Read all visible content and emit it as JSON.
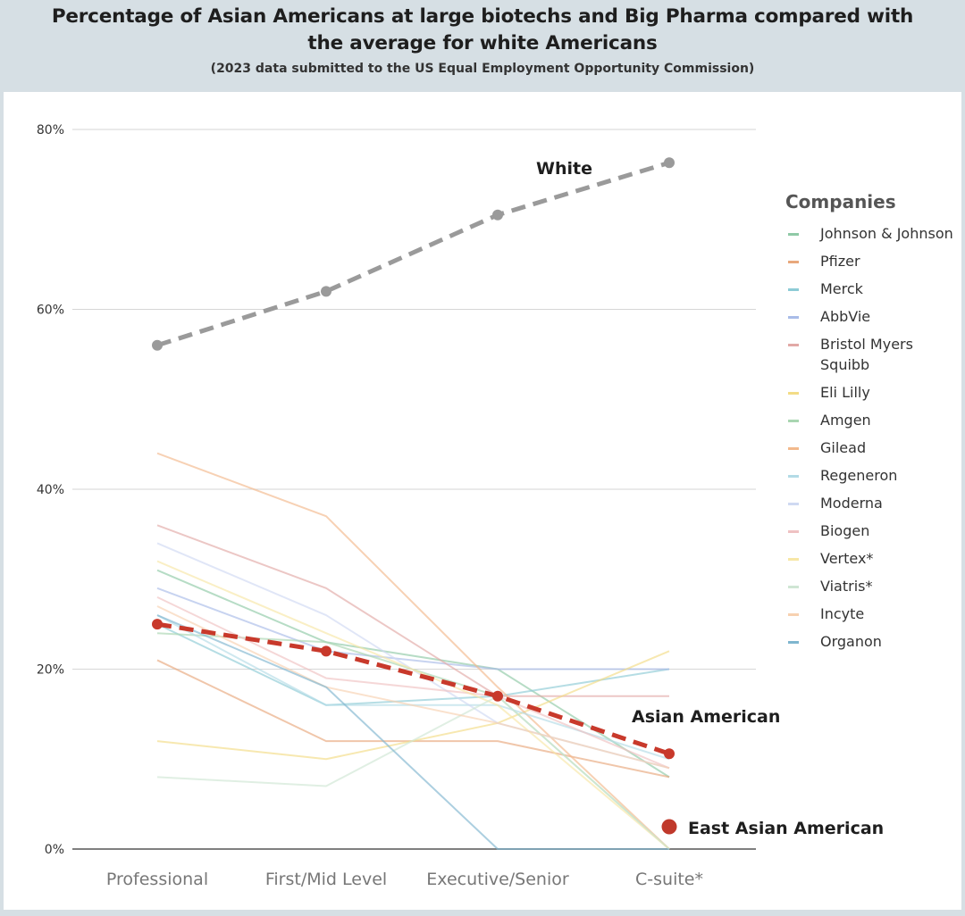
{
  "header": {
    "title": "Percentage of Asian Americans at large biotechs and Big Pharma compared with the average for white Americans",
    "subtitle": "(2023 data submitted to the US Equal Employment Opportunity Commission)"
  },
  "chart_data": {
    "type": "line",
    "categories": [
      "Professional",
      "First/Mid Level",
      "Executive/Senior",
      "C-suite*"
    ],
    "yticks": [
      "0%",
      "20%",
      "40%",
      "60%",
      "80%"
    ],
    "ylim": [
      0,
      80
    ],
    "grid": true,
    "legend_title": "Companies",
    "legend_position": "right",
    "series": [
      {
        "name": "White",
        "values": [
          56,
          62,
          70.5,
          76.3
        ],
        "color": "#9a9a9a",
        "style": "dashed"
      },
      {
        "name": "Asian American",
        "values": [
          25,
          22,
          17,
          10.6
        ],
        "color": "#c8392b",
        "style": "dashed"
      }
    ],
    "east_asian_label": "East Asian American",
    "east_asian_color": "#c0392b",
    "companies": [
      {
        "name": "Johnson & Johnson",
        "color": "#8fc9a6",
        "values": [
          31,
          23,
          20,
          8
        ]
      },
      {
        "name": "Pfizer",
        "color": "#e8a87c",
        "values": [
          21,
          12,
          12,
          8
        ]
      },
      {
        "name": "Merck",
        "color": "#8dcbd6",
        "values": [
          25,
          16,
          17,
          20
        ]
      },
      {
        "name": "AbbVie",
        "color": "#a9bce8",
        "values": [
          29,
          22,
          20,
          20
        ]
      },
      {
        "name": "Bristol Myers Squibb",
        "color": "#e2a9a6",
        "values": [
          36,
          29,
          17,
          17
        ]
      },
      {
        "name": "Eli Lilly",
        "color": "#f3dc86",
        "values": [
          12,
          10,
          14,
          22
        ]
      },
      {
        "name": "Amgen",
        "color": "#a9d6b1",
        "values": [
          24,
          23,
          17,
          0
        ]
      },
      {
        "name": "Gilead",
        "color": "#f2b98c",
        "values": [
          44,
          37,
          18,
          0
        ]
      },
      {
        "name": "Regeneron",
        "color": "#b3dbe6",
        "values": [
          26,
          16,
          16,
          10
        ]
      },
      {
        "name": "Moderna",
        "color": "#cfd9f2",
        "values": [
          34,
          26,
          14,
          9
        ]
      },
      {
        "name": "Biogen",
        "color": "#efc1c2",
        "values": [
          28,
          19,
          17,
          9
        ]
      },
      {
        "name": "Vertex*",
        "color": "#f7e7a6",
        "values": [
          32,
          24,
          16,
          0
        ]
      },
      {
        "name": "Viatris*",
        "color": "#cfe6d4",
        "values": [
          8,
          7,
          17,
          0
        ]
      },
      {
        "name": "Incyte",
        "color": "#f7d1b0",
        "values": [
          27,
          18,
          14,
          9
        ]
      },
      {
        "name": "Organon",
        "color": "#7fb6cf",
        "values": [
          26,
          18,
          0,
          0
        ]
      }
    ]
  }
}
